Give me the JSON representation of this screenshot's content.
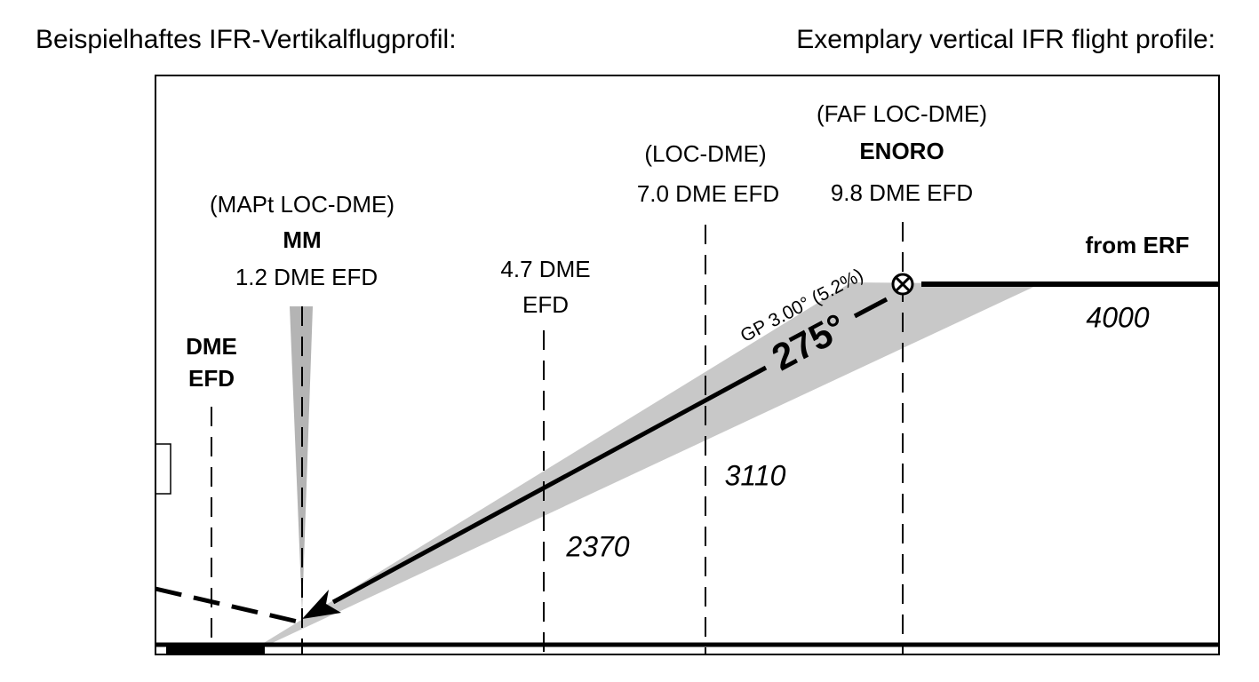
{
  "header": {
    "left": "Beispielhaftes IFR-Vertikalflugprofil:",
    "right": "Exemplary vertical IFR flight profile:"
  },
  "fixes": [
    {
      "lines": [
        "DME",
        "EFD"
      ]
    },
    {
      "lines": [
        "(MAPt LOC-DME)",
        "MM",
        "1.2 DME EFD"
      ]
    },
    {
      "lines": [
        "4.7 DME",
        "EFD"
      ]
    },
    {
      "lines": [
        "(LOC-DME)",
        "7.0 DME EFD"
      ]
    },
    {
      "lines": [
        "(FAF LOC-DME)",
        "ENORO",
        "9.8 DME EFD"
      ]
    }
  ],
  "route_label": "from ERF",
  "altitudes": [
    "4000",
    "3110",
    "2370"
  ],
  "glide_path": {
    "label": "GP 3.00° (5.2%)",
    "course": "275°"
  }
}
